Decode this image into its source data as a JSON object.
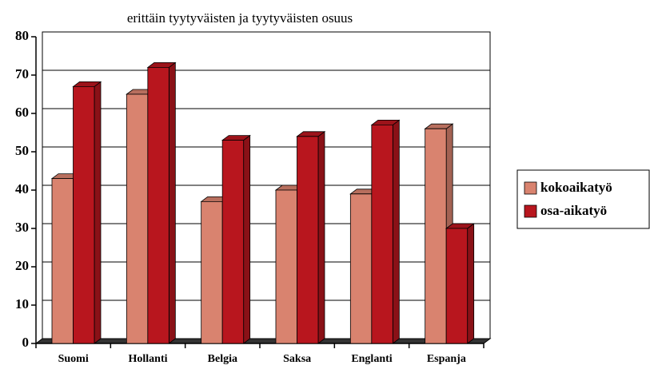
{
  "chart_data": {
    "type": "bar3d",
    "title": "erittäin tyytyväisten ja tyytyväisten osuus",
    "categories": [
      "Suomi",
      "Hollanti",
      "Belgia",
      "Saksa",
      "Englanti",
      "Espanja"
    ],
    "series": [
      {
        "name": "kokoaikatyö",
        "color": "#d9836f",
        "values": [
          43,
          65,
          37,
          40,
          39,
          56
        ]
      },
      {
        "name": "osa-aikatyö",
        "color": "#b8161e",
        "values": [
          67,
          72,
          53,
          54,
          57,
          30
        ]
      }
    ],
    "ylim": [
      0,
      80
    ],
    "yticks": [
      0,
      10,
      20,
      30,
      40,
      50,
      60,
      70,
      80
    ],
    "grid": true,
    "legend": "right"
  }
}
